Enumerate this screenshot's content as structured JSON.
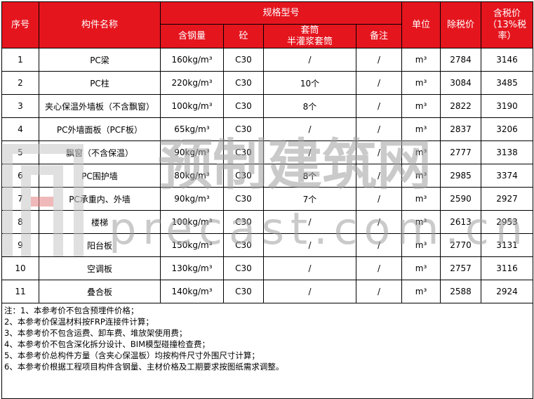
{
  "table": {
    "header": {
      "no": "序号",
      "name": "构件名称",
      "spec": "规格型号",
      "steel": "含钢量",
      "concrete": "砼",
      "sleeve": [
        "套筒",
        "半灌浆套筒"
      ],
      "remark": "备注",
      "unit": "单位",
      "price_ex": "除税价",
      "price_inc": "含税价（13%税率）"
    },
    "rows": [
      [
        "1",
        "PC梁",
        "160kg/m³",
        "C30",
        "/",
        "/",
        "m³",
        "2784",
        "3146"
      ],
      [
        "2",
        "PC柱",
        "220kg/m³",
        "C30",
        "10个",
        "/",
        "m³",
        "3084",
        "3485"
      ],
      [
        "3",
        "夹心保温外墙板（不含飘窗）",
        "100kg/m³",
        "C30",
        "8个",
        "/",
        "m³",
        "2822",
        "3190"
      ],
      [
        "4",
        "PC外墙面板（PCF板）",
        "65kg/m³",
        "C30",
        "/",
        "/",
        "m³",
        "2837",
        "3206"
      ],
      [
        "5",
        "飘窗（不含保温）",
        "90kg/m³",
        "C30",
        "/",
        "/",
        "m³",
        "2777",
        "3138"
      ],
      [
        "6",
        "PC围护墙",
        "80kg/m³",
        "C30",
        "8个",
        "/",
        "m³",
        "2985",
        "3374"
      ],
      [
        "7",
        "PC承重内、外墙",
        "90kg/m³",
        "C30",
        "7个",
        "/",
        "m³",
        "2590",
        "2927"
      ],
      [
        "8",
        "楼梯",
        "100kg/m³",
        "C30",
        "/",
        "/",
        "m³",
        "2613",
        "2953"
      ],
      [
        "9",
        "阳台板",
        "150kg/m³",
        "C30",
        "/",
        "/",
        "m³",
        "2770",
        "3131"
      ],
      [
        "10",
        "空调板",
        "130kg/m³",
        "C30",
        "/",
        "/",
        "m³",
        "2757",
        "3116"
      ],
      [
        "11",
        "叠合板",
        "140kg/m³",
        "C30",
        "/",
        "/",
        "m³",
        "2588",
        "2924"
      ]
    ],
    "notes": [
      "注：1、本参考价不包含预埋件价格；",
      "2、本参考价保温材料按FRP连接件计算；",
      "3、本参考价不包含运费、卸车费、堆放架使用费；",
      "4、本参考价不包含深化拆分设计、BIM模型碰撞检查费；",
      "5、本参考价总构件方量（含夹心保温板）均按构件尺寸外围尺寸计算；",
      "6、本参考价根据工程项目构件含钢量、主材价格及工期要求按图纸需求调整。"
    ]
  },
  "watermark": {
    "title": "预制建筑网",
    "site": "precast.com.cn"
  }
}
